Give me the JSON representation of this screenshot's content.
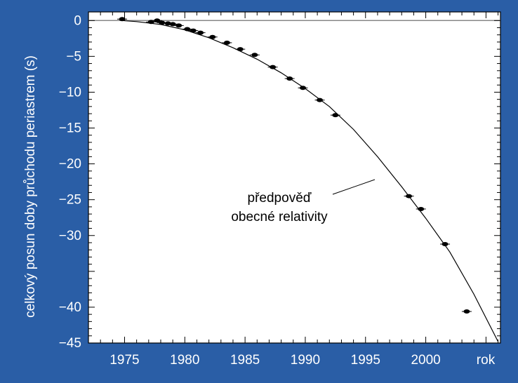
{
  "colors": {
    "background": "#2a5ea6",
    "plot_background": "#ffffff",
    "curve": "#000000",
    "points": "#000000",
    "zero_line": "#888888"
  },
  "chart_data": {
    "type": "scatter",
    "title": "",
    "xlabel": "rok",
    "ylabel": "celkový posun doby průchodu periastrem (s)",
    "xlim": [
      1972,
      2006.2
    ],
    "ylim": [
      -45,
      1.2
    ],
    "x_ticks": [
      1975,
      1980,
      1985,
      1990,
      1995,
      2000
    ],
    "x_tick_labels": [
      "1975",
      "1980",
      "1985",
      "1990",
      "1995",
      "2000"
    ],
    "y_ticks": [
      0,
      -5,
      -10,
      -15,
      -20,
      -25,
      -30,
      -40,
      -45
    ],
    "y_tick_labels": [
      "0",
      "−5",
      "−10",
      "−15",
      "−20",
      "−25",
      "−30",
      "−40",
      "−45"
    ],
    "grid": false,
    "zero_line": 0,
    "annotation": {
      "lines": [
        "předpověď",
        "obecné relativity"
      ]
    },
    "prediction_curve": {
      "x": [
        1974.8,
        1976,
        1978,
        1980,
        1982,
        1984,
        1986,
        1988,
        1990,
        1992,
        1994,
        1996,
        1998,
        2000,
        2002,
        2004,
        2006
      ],
      "y": [
        0,
        -0.15,
        -0.55,
        -1.3,
        -2.4,
        -3.8,
        -5.4,
        -7.3,
        -9.5,
        -12.0,
        -15.2,
        -19.0,
        -23.2,
        -27.6,
        -32.3,
        -38.2,
        -44.8
      ]
    },
    "series": [
      {
        "x": [
          1974.8,
          1977.2,
          1977.7,
          1978.1,
          1978.6,
          1979.0,
          1979.5,
          1980.2,
          1980.7,
          1981.3,
          1982.3,
          1983.5,
          1984.6,
          1985.8,
          1987.3,
          1988.7,
          1989.8,
          1991.2,
          1992.5,
          1998.6,
          1999.6,
          2001.6,
          2003.4
        ],
        "y": [
          0.2,
          -0.2,
          0.0,
          -0.3,
          -0.4,
          -0.5,
          -0.7,
          -1.2,
          -1.4,
          -1.7,
          -2.3,
          -3.1,
          -4.0,
          -4.8,
          -6.5,
          -8.1,
          -9.4,
          -11.1,
          -13.2,
          -24.5,
          -26.3,
          -31.2,
          -40.6
        ]
      }
    ]
  }
}
